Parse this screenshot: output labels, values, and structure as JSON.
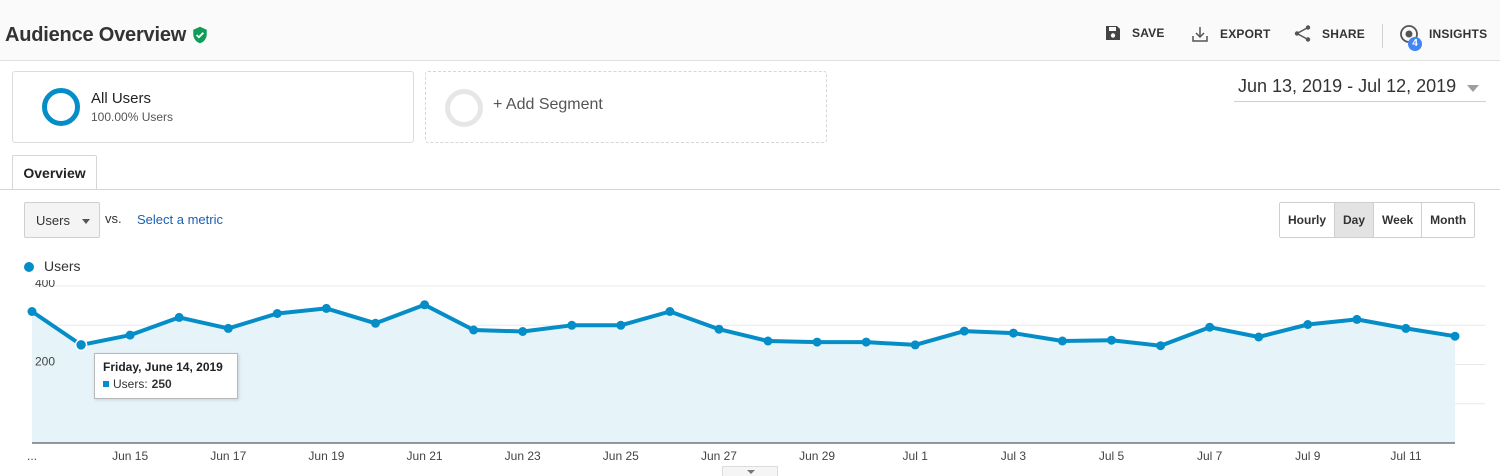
{
  "header": {
    "title": "Audience Overview",
    "actions": {
      "save": "SAVE",
      "export": "EXPORT",
      "share": "SHARE",
      "insights": "INSIGHTS",
      "insights_badge": "4"
    }
  },
  "segments": {
    "active": {
      "name": "All Users",
      "detail": "100.00% Users"
    },
    "add_label": "+ Add Segment"
  },
  "date_range": "Jun 13, 2019 - Jul 12, 2019",
  "tabs": [
    "Overview"
  ],
  "controls": {
    "metric": "Users",
    "vs": "vs.",
    "select_metric": "Select a metric",
    "granularity": [
      "Hourly",
      "Day",
      "Week",
      "Month"
    ],
    "granularity_selected": "Day"
  },
  "legend": {
    "series_name": "Users"
  },
  "tooltip": {
    "date": "Friday, June 14, 2019",
    "label": "Users:",
    "value": "250"
  },
  "colors": {
    "series": "#058dc7",
    "area": "#e6f4fa",
    "verified": "#0f9d58",
    "badge": "#4285f4"
  },
  "chart_data": {
    "type": "area",
    "series": [
      {
        "name": "Users",
        "values": [
          335,
          250,
          275,
          320,
          292,
          330,
          343,
          305,
          352,
          288,
          284,
          300,
          300,
          335,
          290,
          260,
          257,
          257,
          250,
          285,
          280,
          260,
          262,
          248,
          295,
          270,
          302,
          315,
          292,
          272
        ]
      }
    ],
    "x": [
      "Jun 13",
      "Jun 14",
      "Jun 15",
      "Jun 16",
      "Jun 17",
      "Jun 18",
      "Jun 19",
      "Jun 20",
      "Jun 21",
      "Jun 22",
      "Jun 23",
      "Jun 24",
      "Jun 25",
      "Jun 26",
      "Jun 27",
      "Jun 28",
      "Jun 29",
      "Jun 30",
      "Jul 1",
      "Jul 2",
      "Jul 3",
      "Jul 4",
      "Jul 5",
      "Jul 6",
      "Jul 7",
      "Jul 8",
      "Jul 9",
      "Jul 10",
      "Jul 11",
      "Jul 12"
    ],
    "x_tick_labels": [
      "...",
      "Jun 15",
      "Jun 17",
      "Jun 19",
      "Jun 21",
      "Jun 23",
      "Jun 25",
      "Jun 27",
      "Jun 29",
      "Jul 1",
      "Jul 3",
      "Jul 5",
      "Jul 7",
      "Jul 9",
      "Jul 11"
    ],
    "y_tick_labels": [
      "400",
      "200"
    ],
    "ylim": [
      0,
      400
    ],
    "grid": true,
    "highlighted_point": "Jun 14"
  }
}
